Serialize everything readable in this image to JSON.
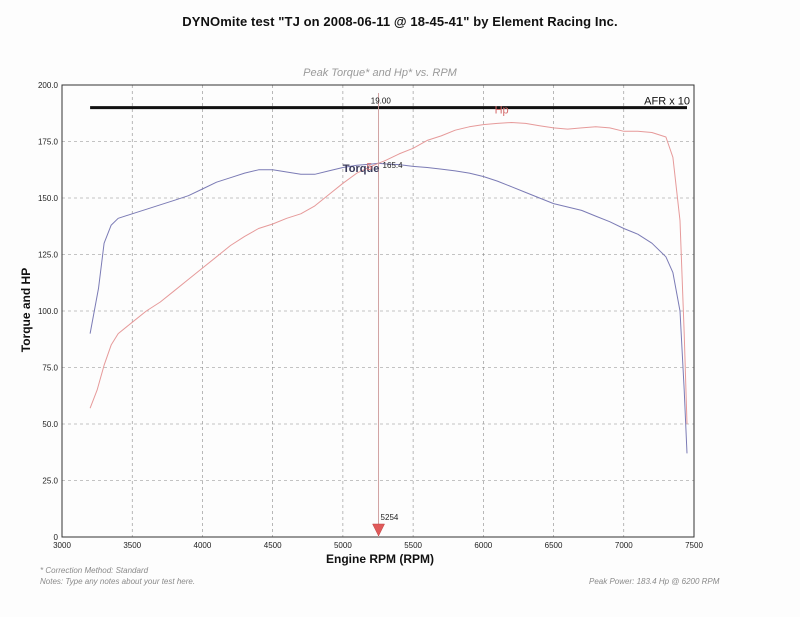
{
  "page": {
    "title": "DYNOmite test \"TJ   on 2008-06-11 @ 18-45-41\" by Element Racing Inc.",
    "footer_method": "* Correction Method: Standard",
    "footer_notes": "Notes: Type any notes about your test here.",
    "footer_peak": "Peak Power: 183.4 Hp @ 6200 RPM"
  },
  "chart_data": {
    "type": "line",
    "title": "Peak Torque* and Hp* vs. RPM",
    "xlabel": "Engine RPM (RPM)",
    "ylabel": "Torque and HP",
    "xlim": [
      3000,
      7500
    ],
    "ylim": [
      0,
      200
    ],
    "x_ticks": [
      3000,
      3500,
      4000,
      4500,
      5000,
      5500,
      6000,
      6500,
      7000,
      7500
    ],
    "y_ticks": [
      0,
      25,
      50,
      75,
      100,
      125,
      150,
      175,
      200
    ],
    "x_tick_labels": [
      "3000",
      "3500",
      "4000",
      "4500",
      "5000",
      "5500",
      "6000",
      "6500",
      "7000",
      "7500"
    ],
    "y_tick_labels": [
      "0",
      "25.0",
      "50.0",
      "75.0",
      "100.0",
      "125.0",
      "150.0",
      "175.0",
      "200.0"
    ],
    "grid": true,
    "colors": {
      "torque": "#7b7bb5",
      "hp": "#e69a9a",
      "afr": "#111111",
      "marker": "#e05a5a",
      "title": "#9a9a9a"
    },
    "series": [
      {
        "name": "Torque",
        "x": [
          3200,
          3260,
          3300,
          3350,
          3400,
          3500,
          3600,
          3700,
          3800,
          3900,
          4000,
          4100,
          4200,
          4300,
          4400,
          4500,
          4600,
          4700,
          4800,
          4900,
          5000,
          5100,
          5200,
          5254,
          5300,
          5400,
          5500,
          5600,
          5700,
          5800,
          5900,
          6000,
          6100,
          6200,
          6300,
          6400,
          6500,
          6600,
          6700,
          6800,
          6900,
          7000,
          7100,
          7200,
          7300,
          7350,
          7400,
          7430,
          7450
        ],
        "y": [
          90,
          110,
          130,
          138,
          141,
          143,
          145,
          147,
          149,
          151,
          154,
          157,
          159,
          161,
          162.5,
          162.5,
          161.5,
          160.5,
          160.5,
          162,
          163.5,
          164.5,
          165,
          165.4,
          165.1,
          164.8,
          164,
          163.5,
          162.8,
          162,
          161,
          159.5,
          157.5,
          155,
          152.5,
          150,
          147.5,
          146,
          144.5,
          142,
          139.5,
          136.5,
          134,
          130,
          124,
          117,
          100,
          65,
          37
        ]
      },
      {
        "name": "Hp",
        "x": [
          3200,
          3250,
          3300,
          3350,
          3400,
          3500,
          3600,
          3700,
          3800,
          3900,
          4000,
          4100,
          4200,
          4300,
          4400,
          4500,
          4600,
          4700,
          4800,
          4900,
          5000,
          5100,
          5200,
          5254,
          5300,
          5400,
          5500,
          5600,
          5700,
          5800,
          5900,
          6000,
          6100,
          6200,
          6300,
          6400,
          6500,
          6600,
          6700,
          6800,
          6900,
          7000,
          7100,
          7200,
          7300,
          7350,
          7400,
          7430,
          7450
        ],
        "y": [
          57,
          65,
          76,
          85,
          90,
          95,
          100,
          104,
          109,
          114,
          119,
          124,
          129,
          133,
          136.5,
          138.5,
          141,
          143,
          146.5,
          151.5,
          156.5,
          161,
          164,
          165.4,
          166.5,
          169.5,
          172,
          175.5,
          177.5,
          180,
          181.5,
          182.5,
          183,
          183.4,
          183,
          182,
          181,
          180.5,
          181,
          181.5,
          181,
          179.5,
          179.5,
          179,
          177,
          168,
          140,
          90,
          50
        ]
      },
      {
        "name": "AFR x 10",
        "x": [
          3200,
          7450
        ],
        "y": [
          190,
          190
        ]
      }
    ],
    "annotations": {
      "afr_value": "19.00",
      "crossover_rpm": 5254,
      "crossover_rpm_label": "5254",
      "crossover_value": 165.4,
      "crossover_value_label": "165.4",
      "crossover_partial_label": "5",
      "torque_label": "Torque",
      "hp_label": "Hp",
      "afr_label": "AFR x 10"
    }
  }
}
